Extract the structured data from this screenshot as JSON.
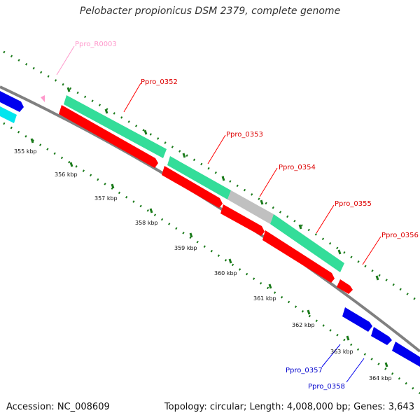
{
  "title": "Pelobacter propionicus DSM 2379, complete genome",
  "footer": {
    "accession": "Accession: NC_008609",
    "stats": "Topology: circular; Length: 4,008,000 bp; Genes: 3,643"
  },
  "colors": {
    "backbone": "#808080",
    "ruler": "#1a7a1a",
    "cds_forward": "#ff0000",
    "cds_reverse": "#0000ee",
    "gene_green": "#33dd99",
    "gene_gray": "#c0c0c0",
    "cyan": "#00e5ee",
    "rrna": "#ff99cc"
  },
  "ruler_labels": [
    "355 kbp",
    "356 kbp",
    "357 kbp",
    "358 kbp",
    "359 kbp",
    "360 kbp",
    "361 kbp",
    "362 kbp",
    "363 kbp",
    "364 kbp"
  ],
  "gene_labels": {
    "r0003": "Ppro_R0003",
    "g0352": "Ppro_0352",
    "g0353": "Ppro_0353",
    "g0354": "Ppro_0354",
    "g0355": "Ppro_0355",
    "g0356": "Ppro_0356",
    "g0357": "Ppro_0357",
    "g0358": "Ppro_0358"
  }
}
